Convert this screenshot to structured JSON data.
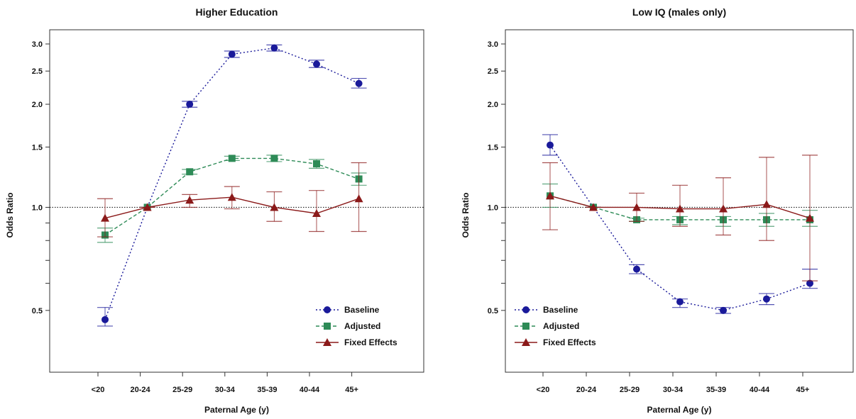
{
  "chart_data": [
    {
      "type": "line",
      "title": "Higher Education",
      "xlabel": "Paternal Age (y)",
      "ylabel": "Odds Ratio",
      "categories": [
        "<20",
        "20-24",
        "25-29",
        "30-34",
        "35-39",
        "40-44",
        "45+"
      ],
      "y_scale": "log",
      "ylim": [
        0.33,
        3.3
      ],
      "y_ticks": [
        0.5,
        1.0,
        1.5,
        2.0,
        2.5,
        3.0
      ],
      "y_minor_ticks": [
        0.6,
        0.7,
        0.8,
        0.9
      ],
      "reference_line": 1.0,
      "legend_position": "bottom-right",
      "series": [
        {
          "name": "Baseline",
          "color": "#1a1a9a",
          "marker": "circle",
          "line_style": "dotted",
          "values": [
            0.47,
            1.0,
            2.0,
            2.8,
            2.92,
            2.62,
            2.3
          ],
          "ci_low": [
            0.45,
            1.0,
            1.96,
            2.74,
            2.86,
            2.56,
            2.23
          ],
          "ci_high": [
            0.51,
            1.0,
            2.04,
            2.86,
            2.98,
            2.69,
            2.38
          ]
        },
        {
          "name": "Adjusted",
          "color": "#2e8b57",
          "marker": "square",
          "line_style": "dashed",
          "values": [
            0.83,
            1.0,
            1.27,
            1.39,
            1.39,
            1.34,
            1.21
          ],
          "ci_low": [
            0.79,
            1.0,
            1.25,
            1.37,
            1.36,
            1.3,
            1.16
          ],
          "ci_high": [
            0.87,
            1.0,
            1.29,
            1.41,
            1.42,
            1.38,
            1.26
          ]
        },
        {
          "name": "Fixed Effects",
          "color": "#8b1a1a",
          "marker": "triangle",
          "line_style": "solid",
          "values": [
            0.93,
            1.0,
            1.05,
            1.07,
            1.0,
            0.96,
            1.06
          ],
          "ci_low": [
            0.82,
            1.0,
            1.0,
            0.99,
            0.91,
            0.85,
            0.85
          ],
          "ci_high": [
            1.06,
            1.0,
            1.09,
            1.15,
            1.11,
            1.12,
            1.35
          ]
        }
      ]
    },
    {
      "type": "line",
      "title": "Low IQ (males only)",
      "xlabel": "Paternal Age (y)",
      "ylabel": "Odds Ratio",
      "categories": [
        "<20",
        "20-24",
        "25-29",
        "30-34",
        "35-39",
        "40-44",
        "45+"
      ],
      "y_scale": "log",
      "ylim": [
        0.33,
        3.3
      ],
      "y_ticks": [
        0.5,
        1.0,
        1.5,
        2.0,
        2.5,
        3.0
      ],
      "y_minor_ticks": [
        0.6,
        0.7,
        0.8,
        0.9
      ],
      "reference_line": 1.0,
      "legend_position": "bottom-left",
      "series": [
        {
          "name": "Baseline",
          "color": "#1a1a9a",
          "marker": "circle",
          "line_style": "dotted",
          "values": [
            1.52,
            1.0,
            0.66,
            0.53,
            0.5,
            0.54,
            0.6
          ],
          "ci_low": [
            1.42,
            1.0,
            0.64,
            0.51,
            0.49,
            0.52,
            0.58
          ],
          "ci_high": [
            1.63,
            1.0,
            0.68,
            0.54,
            0.51,
            0.56,
            0.66
          ]
        },
        {
          "name": "Adjusted",
          "color": "#2e8b57",
          "marker": "square",
          "line_style": "dashed",
          "values": [
            1.08,
            1.0,
            0.92,
            0.92,
            0.92,
            0.92,
            0.92
          ],
          "ci_low": [
            1.0,
            1.0,
            0.91,
            0.89,
            0.88,
            0.88,
            0.88
          ],
          "ci_high": [
            1.17,
            1.0,
            0.93,
            0.94,
            0.94,
            0.96,
            0.98
          ]
        },
        {
          "name": "Fixed Effects",
          "color": "#8b1a1a",
          "marker": "triangle",
          "line_style": "solid",
          "values": [
            1.08,
            1.0,
            1.0,
            0.99,
            0.99,
            1.02,
            0.93
          ],
          "ci_low": [
            0.86,
            1.0,
            0.91,
            0.88,
            0.83,
            0.8,
            0.61
          ],
          "ci_high": [
            1.35,
            1.0,
            1.1,
            1.16,
            1.22,
            1.4,
            1.42
          ]
        }
      ]
    }
  ]
}
